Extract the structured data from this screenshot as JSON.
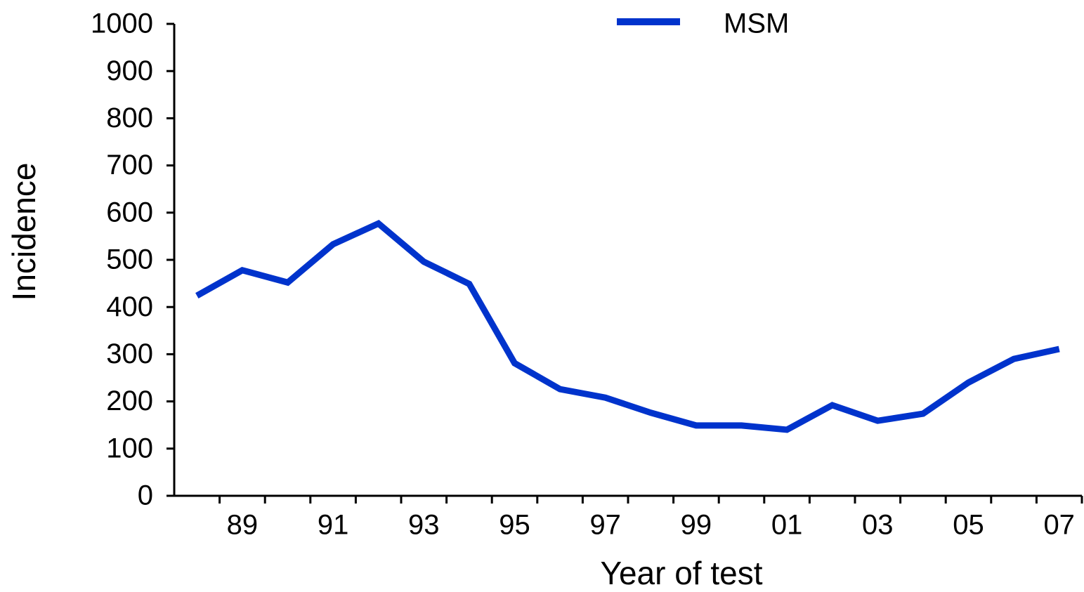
{
  "chart_data": {
    "type": "line",
    "xlabel": "Year of test",
    "ylabel": "Incidence",
    "categories": [
      null,
      "89",
      null,
      "91",
      null,
      "93",
      null,
      "95",
      null,
      "97",
      null,
      "99",
      null,
      "01",
      null,
      "03",
      null,
      "05",
      null,
      "07"
    ],
    "series": [
      {
        "name": "MSM",
        "color": "#0033cc",
        "values": [
          424,
          478,
          452,
          533,
          577,
          496,
          449,
          281,
          226,
          208,
          176,
          149,
          149,
          140,
          192,
          159,
          174,
          240,
          290,
          311
        ]
      }
    ],
    "ylim": [
      0,
      1000
    ],
    "yticks": [
      0,
      100,
      200,
      300,
      400,
      500,
      600,
      700,
      800,
      900,
      1000
    ],
    "grid": false,
    "legend": "top"
  }
}
